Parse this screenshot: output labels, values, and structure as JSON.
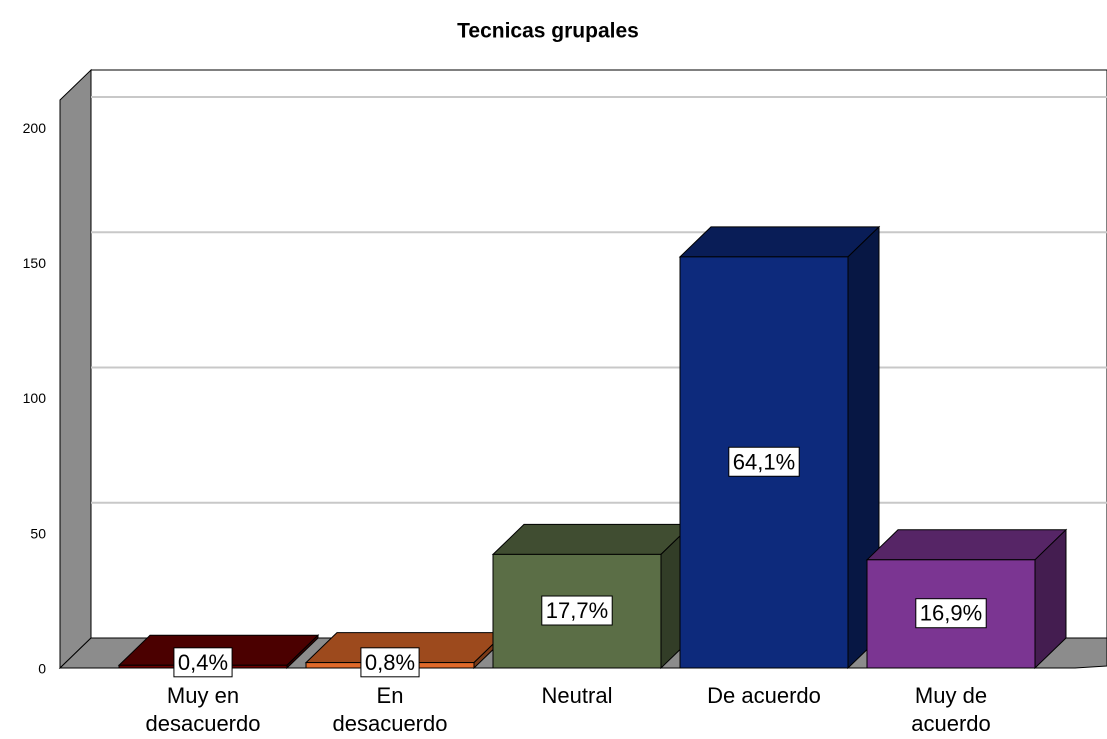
{
  "chart_data": {
    "type": "bar3d",
    "title": "Tecnicas grupales",
    "categories": [
      "Muy en desacuerdo",
      "En desacuerdo",
      "Neutral",
      "De acuerdo",
      "Muy de acuerdo"
    ],
    "values": [
      1,
      2,
      42,
      152,
      40
    ],
    "value_labels": [
      "0,4%",
      "0,8%",
      "17,7%",
      "64,1%",
      "16,9%"
    ],
    "colors": [
      "#6b0000",
      "#e0692a",
      "#5b6e46",
      "#0d2a7c",
      "#7b3592"
    ],
    "ylim": [
      0,
      210
    ],
    "yticks": [
      0,
      50,
      100,
      150,
      200
    ],
    "grid": true
  }
}
